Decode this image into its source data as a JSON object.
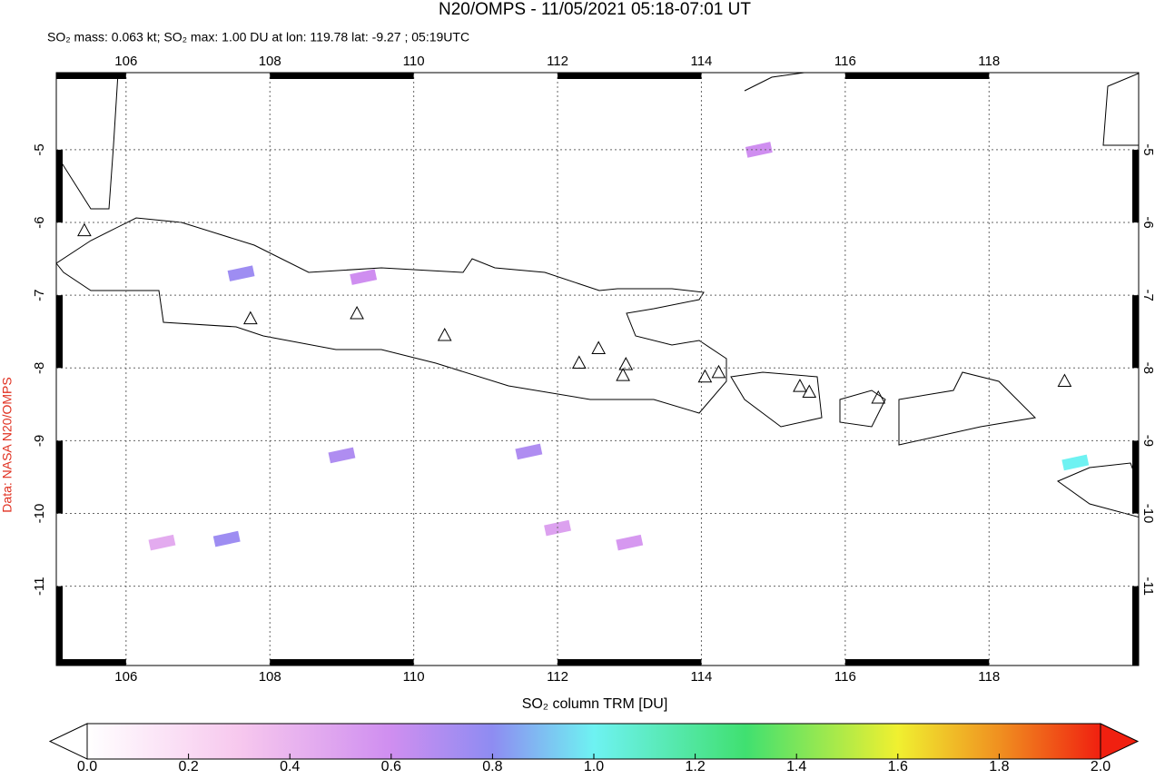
{
  "chart_data": {
    "type": "map",
    "title": "N20/OMPS - 11/05/2021 05:18-07:01 UT",
    "subtitle": "SO₂ mass: 0.063 kt; SO₂ max: 1.00 DU at lon: 119.78 lat: -9.27 ; 05:19UTC",
    "side_label": "Data: NASA N20/OMPS",
    "colorbar_label": "SO₂ column TRM [DU]",
    "xlim": [
      105.03,
      120.08
    ],
    "ylim": [
      -12.09,
      -3.94
    ],
    "xticks": [
      106,
      108,
      110,
      112,
      114,
      116,
      118
    ],
    "yticks": [
      -5,
      -6,
      -7,
      -8,
      -9,
      -10,
      -11
    ],
    "grid": true,
    "colorbar_lim": [
      0,
      2
    ],
    "colorbar_ticks": [
      {
        "value": 0,
        "label": "0.0"
      },
      {
        "value": 0.2,
        "label": "0.2"
      },
      {
        "value": 0.4,
        "label": "0.4"
      },
      {
        "value": 0.6,
        "label": "0.6"
      },
      {
        "value": 0.8,
        "label": "0.8"
      },
      {
        "value": 1,
        "label": "1.0"
      },
      {
        "value": 1.2,
        "label": "1.2"
      },
      {
        "value": 1.4,
        "label": "1.4"
      },
      {
        "value": 1.6,
        "label": "1.6"
      },
      {
        "value": 1.8,
        "label": "1.8"
      },
      {
        "value": 2,
        "label": "2.0"
      }
    ],
    "pixels": {
      "lon": [
        107.6,
        109.0,
        111.6,
        107.4,
        119.2,
        109.3,
        114.8,
        112.0,
        113.0,
        106.5
      ],
      "lat": [
        -6.7,
        -9.2,
        -9.15,
        -10.35,
        -9.3,
        -6.75,
        -5.0,
        -10.2,
        -10.4,
        -10.4
      ],
      "values": [
        0.75,
        0.7,
        0.7,
        0.75,
        1.0,
        0.6,
        0.6,
        0.5,
        0.55,
        0.45
      ]
    },
    "volcanoes": {
      "lon": [
        105.42,
        107.73,
        109.21,
        110.43,
        112.3,
        112.57,
        112.95,
        112.91,
        114.05,
        114.24,
        115.37,
        115.5,
        116.46,
        119.05
      ],
      "lat": [
        -6.12,
        -7.33,
        -7.26,
        -7.56,
        -7.94,
        -7.74,
        -7.96,
        -8.11,
        -8.13,
        -8.07,
        -8.26,
        -8.34,
        -8.42,
        -8.19
      ]
    }
  }
}
